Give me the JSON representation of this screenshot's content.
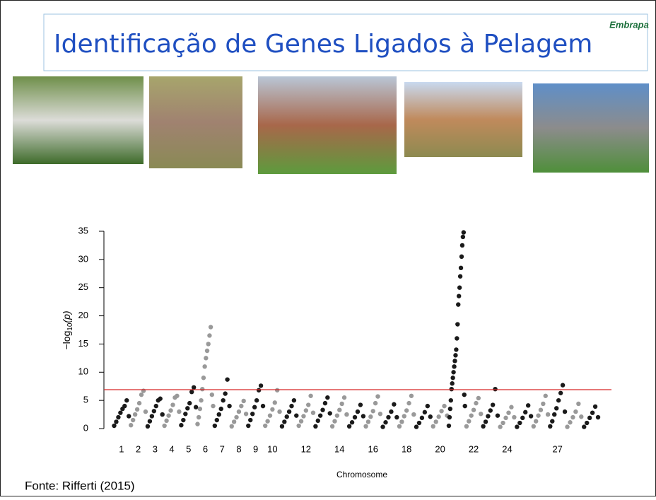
{
  "slide": {
    "title": "Identificação de Genes Ligados à Pelagem",
    "logo": "Embrapa",
    "source": "Fonte: Rifferti (2015)"
  },
  "chart_data": {
    "type": "manhattan",
    "y_label": "−log",
    "y_label_sub": "10",
    "y_label_tail": "(p)",
    "x_label": "Chromosome",
    "categories": [
      "1",
      "2",
      "3",
      "4",
      "5",
      "6",
      "7",
      "8",
      "9",
      "10",
      null,
      "12",
      null,
      "14",
      null,
      "16",
      null,
      "18",
      null,
      "20",
      null,
      "22",
      null,
      "24",
      null,
      null,
      "27",
      null,
      null
    ],
    "colors": [
      "#1a1a1a",
      "#999999"
    ],
    "values": [
      [
        0.5,
        1.2,
        2,
        2.8,
        3.5,
        4,
        5,
        2.2
      ],
      [
        0.6,
        1.5,
        2.5,
        3.4,
        4.5,
        6,
        6.7,
        3
      ],
      [
        0.4,
        1.3,
        2.2,
        3.1,
        4,
        5,
        5.3,
        2.5
      ],
      [
        0.5,
        1.4,
        2.3,
        3.2,
        4.2,
        5.5,
        5.8,
        3
      ],
      [
        0.6,
        1.5,
        2.6,
        3.6,
        4.5,
        6.5,
        7.3,
        3.8
      ],
      [
        0.8,
        2,
        3.5,
        5,
        7,
        9,
        11,
        12.5,
        13.8,
        15,
        16.5,
        18,
        6,
        4
      ],
      [
        0.5,
        1.5,
        2.5,
        3.5,
        5,
        6.2,
        8.7,
        4
      ],
      [
        0.4,
        1.2,
        2,
        3,
        4,
        4.9,
        2.6
      ],
      [
        0.5,
        1.5,
        2.6,
        3.8,
        5,
        6.8,
        7.6,
        4
      ],
      [
        0.5,
        1.3,
        2.3,
        3.4,
        4.6,
        6.8,
        3
      ],
      [
        0.4,
        1.2,
        2.1,
        3,
        4,
        5,
        2.3
      ],
      [
        0.5,
        1.3,
        2.2,
        3.2,
        4.2,
        5.8,
        2.8
      ],
      [
        0.4,
        1.4,
        2.3,
        3.3,
        4.5,
        5.5,
        2.7
      ],
      [
        0.4,
        1.3,
        2.3,
        3.3,
        4.4,
        5.5,
        2.5
      ],
      [
        0.4,
        1.1,
        2,
        3,
        4.2,
        2.2
      ],
      [
        0.4,
        1.2,
        2.1,
        3.1,
        4.5,
        5.7,
        2.6
      ],
      [
        0.3,
        1.1,
        2,
        3,
        4.3,
        2
      ],
      [
        0.4,
        1.2,
        2.2,
        3.2,
        4.5,
        5.8,
        2.5
      ],
      [
        0.3,
        1,
        1.9,
        2.9,
        4,
        2.1
      ],
      [
        0.4,
        1.2,
        2.1,
        3.1,
        4,
        2.3
      ],
      [
        0.5,
        2,
        3.5,
        5,
        7,
        8,
        9,
        10,
        11,
        12,
        13,
        14,
        16,
        18.5,
        22,
        23.5,
        25,
        27,
        28.5,
        30.5,
        32.5,
        34,
        34.8,
        6,
        4
      ],
      [
        0.4,
        1.3,
        2.3,
        3.3,
        4.5,
        5.4,
        2.6
      ],
      [
        0.4,
        1.2,
        2.2,
        3.2,
        4.2,
        7,
        2.3
      ],
      [
        0.3,
        1,
        1.9,
        2.8,
        3.8,
        2
      ],
      [
        0.3,
        1,
        1.9,
        2.9,
        4.1,
        2.2
      ],
      [
        0.4,
        1.3,
        2.3,
        3.3,
        4.4,
        5.8,
        2.5
      ],
      [
        0.4,
        1.3,
        2.5,
        3.6,
        5,
        6.3,
        7.7,
        3
      ],
      [
        0.3,
        1.1,
        2,
        3,
        4.4,
        2.1
      ],
      [
        0.3,
        1,
        1.9,
        2.8,
        3.9,
        2
      ]
    ],
    "threshold": 6.9,
    "threshold_color": "#d62728",
    "ylim": [
      0,
      35
    ],
    "yticks": [
      0,
      5,
      10,
      15,
      20,
      25,
      30,
      35
    ]
  }
}
